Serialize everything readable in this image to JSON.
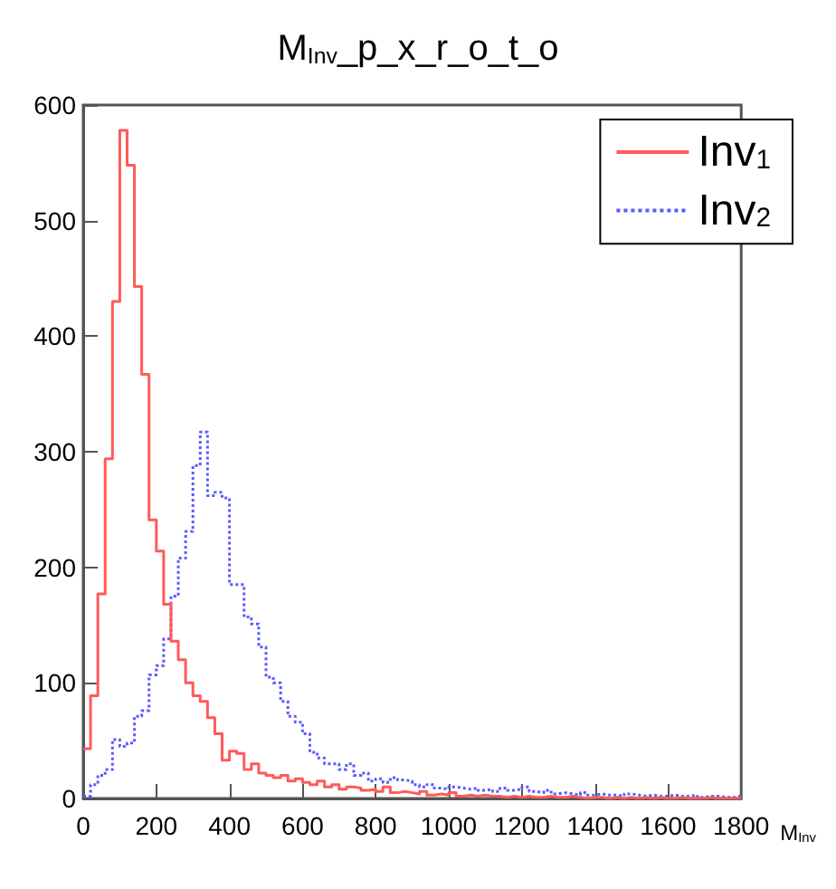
{
  "chart_data": {
    "type": "histogram",
    "title": "M$_{Inv}$_p_x_r_o_t_o",
    "xlabel": "M$_{Inv}$",
    "bins": [
      0,
      20,
      40,
      60,
      80,
      100,
      120,
      140,
      160,
      180,
      200,
      220,
      240,
      260,
      280,
      300,
      320,
      340,
      360,
      380,
      400,
      420,
      440,
      460,
      480,
      500,
      520,
      540,
      560,
      580,
      600,
      620,
      640,
      660,
      680,
      700,
      720,
      740,
      760,
      780,
      800,
      820,
      840,
      860,
      880,
      900,
      920,
      940,
      960,
      980,
      1000,
      1020,
      1040,
      1060,
      1080,
      1100,
      1120,
      1140,
      1160,
      1180,
      1200,
      1220,
      1240,
      1260,
      1280,
      1300,
      1320,
      1340,
      1360,
      1380,
      1400,
      1420,
      1440,
      1460,
      1480,
      1500,
      1520,
      1540,
      1560,
      1580,
      1600,
      1620,
      1640,
      1660,
      1680,
      1700,
      1720,
      1740,
      1760,
      1780,
      1800
    ],
    "series": [
      {
        "name": "Inv$_{1}$",
        "color": "#ff5a5a",
        "line_style": "solid",
        "values": [
          43,
          89,
          177,
          294,
          430,
          578,
          548,
          443,
          367,
          241,
          214,
          168,
          136,
          120,
          100,
          89,
          84,
          70,
          56,
          33,
          41,
          39,
          25,
          30,
          22,
          20,
          18,
          20,
          15,
          17,
          14,
          12,
          15,
          10,
          12,
          8,
          10,
          9,
          7,
          8,
          6,
          10,
          5,
          6,
          5,
          4,
          6,
          3,
          4,
          3,
          5,
          2,
          3,
          2,
          3,
          2,
          2,
          1,
          2,
          1,
          2,
          1,
          1,
          2,
          1,
          1,
          2,
          1,
          0,
          1,
          1,
          0,
          1,
          0,
          1,
          0,
          1,
          0,
          1,
          0,
          0,
          1,
          0,
          0,
          0,
          1,
          0,
          0,
          0,
          0
        ]
      },
      {
        "name": "Inv$_{2}$",
        "color": "#5a5aff",
        "line_style": "dotted",
        "values": [
          2,
          12,
          20,
          25,
          51,
          45,
          48,
          71,
          76,
          107,
          115,
          138,
          175,
          208,
          231,
          288,
          317,
          262,
          265,
          260,
          185,
          185,
          157,
          151,
          131,
          105,
          100,
          84,
          71,
          66,
          56,
          40,
          35,
          30,
          30,
          25,
          30,
          20,
          22,
          15,
          17,
          14,
          18,
          16,
          15,
          12,
          10,
          12,
          9,
          8,
          10,
          9,
          8,
          9,
          7,
          8,
          6,
          9,
          7,
          8,
          10,
          6,
          5,
          7,
          4,
          5,
          4,
          3,
          5,
          3,
          4,
          3,
          3,
          2,
          4,
          3,
          2,
          3,
          2,
          2,
          3,
          2,
          2,
          3,
          1,
          2,
          2,
          1,
          1,
          2
        ]
      }
    ],
    "xlim": [
      0,
      1800
    ],
    "xticks": [
      0,
      200,
      400,
      600,
      800,
      1000,
      1200,
      1400,
      1600,
      1800
    ],
    "ylim": [
      0,
      600
    ],
    "yticks": [
      0,
      100,
      200,
      300,
      400,
      500,
      600
    ],
    "legend": "top right",
    "grid": false
  }
}
